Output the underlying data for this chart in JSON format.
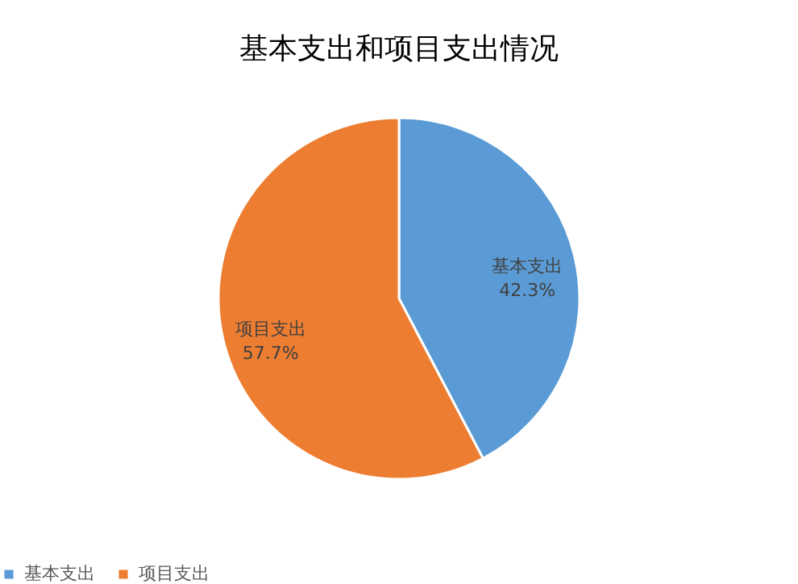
{
  "chart_data": {
    "type": "pie",
    "title": "基本支出和项目支出情况",
    "categories": [
      "基本支出",
      "项目支出"
    ],
    "values": [
      42.3,
      57.7
    ],
    "colors": [
      "#5b9bd5",
      "#ed7d31"
    ],
    "value_labels": [
      "42.3%",
      "57.7%"
    ],
    "legend": "bottom"
  }
}
